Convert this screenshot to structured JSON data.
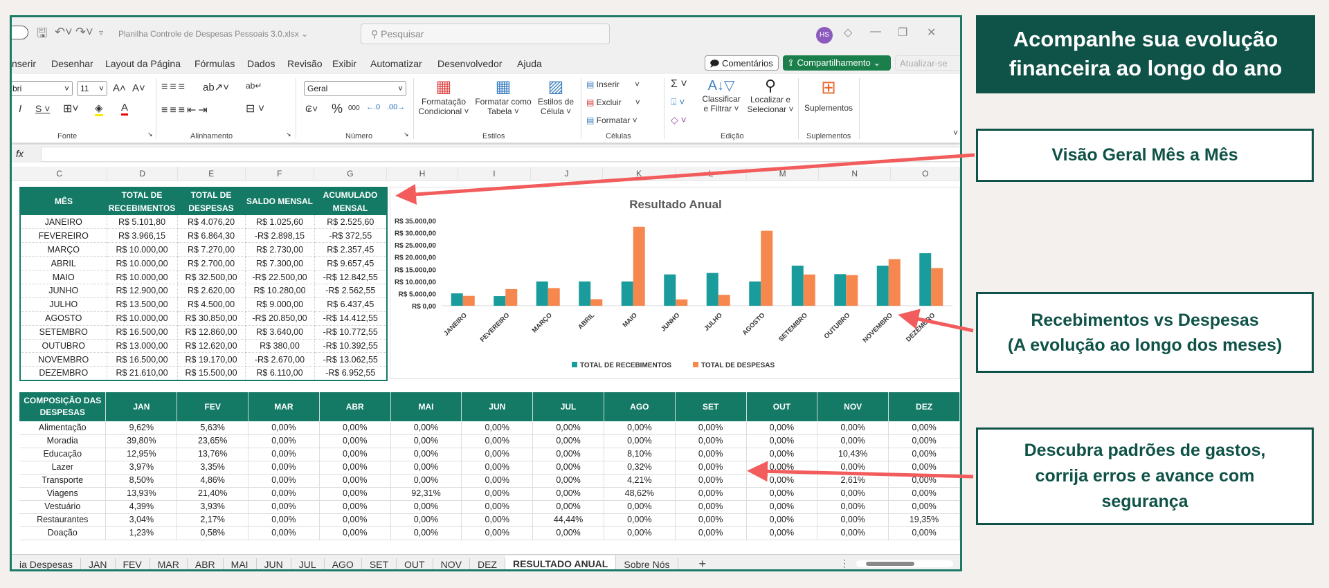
{
  "window": {
    "doc_title": "Planilha Controle de Despesas Pessoais 3.0.xlsx ⌄",
    "search_placeholder": "Pesquisar",
    "avatar": "HS"
  },
  "menu": [
    "nserir",
    "Desenhar",
    "Layout da Página",
    "Fórmulas",
    "Dados",
    "Revisão",
    "Exibir",
    "Automatizar",
    "Desenvolvedor",
    "Ajuda"
  ],
  "menu_buttons": {
    "comments": "Comentários",
    "share": "Compartilhamento ⌄",
    "update": "Atualizar-se"
  },
  "ribbon": {
    "font_name": "bri",
    "font_size": "11",
    "number_format": "Geral",
    "fonte": "Fonte",
    "alinhamento": "Alinhamento",
    "numero": "Número",
    "cond_format_1": "Formatação",
    "cond_format_2": "Condicional ˅",
    "format_table_1": "Formatar como",
    "format_table_2": "Tabela ˅",
    "cell_styles_1": "Estilos de",
    "cell_styles_2": "Célula ˅",
    "estilos": "Estilos",
    "inserir": "Inserir",
    "excluir": "Excluir",
    "formatar": "Formatar ˅",
    "celulas": "Células",
    "sort_1": "Classificar",
    "sort_2": "e Filtrar ˅",
    "find_1": "Localizar e",
    "find_2": "Selecionar ˅",
    "edicao": "Edição",
    "suplementos_btn": "Suplementos",
    "suplementos": "Suplementos"
  },
  "formula_bar": {
    "fx": "fx",
    "value": ""
  },
  "columns": [
    "C",
    "D",
    "E",
    "F",
    "G",
    "H",
    "I",
    "J",
    "K",
    "L",
    "M",
    "N",
    "O"
  ],
  "summary": {
    "headers": [
      "MÊS",
      "TOTAL DE RECEBIMENTOS",
      "TOTAL DE DESPESAS",
      "SALDO MENSAL",
      "ACUMULADO MENSAL"
    ],
    "rows": [
      [
        "JANEIRO",
        "R$ 5.101,80",
        "R$ 4.076,20",
        "R$ 1.025,60",
        "R$ 2.525,60"
      ],
      [
        "FEVEREIRO",
        "R$ 3.966,15",
        "R$ 6.864,30",
        "-R$ 2.898,15",
        "-R$ 372,55"
      ],
      [
        "MARÇO",
        "R$ 10.000,00",
        "R$ 7.270,00",
        "R$ 2.730,00",
        "R$ 2.357,45"
      ],
      [
        "ABRIL",
        "R$ 10.000,00",
        "R$ 2.700,00",
        "R$ 7.300,00",
        "R$ 9.657,45"
      ],
      [
        "MAIO",
        "R$ 10.000,00",
        "R$ 32.500,00",
        "-R$ 22.500,00",
        "-R$ 12.842,55"
      ],
      [
        "JUNHO",
        "R$ 12.900,00",
        "R$ 2.620,00",
        "R$ 10.280,00",
        "-R$ 2.562,55"
      ],
      [
        "JULHO",
        "R$ 13.500,00",
        "R$ 4.500,00",
        "R$ 9.000,00",
        "R$ 6.437,45"
      ],
      [
        "AGOSTO",
        "R$ 10.000,00",
        "R$ 30.850,00",
        "-R$ 20.850,00",
        "-R$ 14.412,55"
      ],
      [
        "SETEMBRO",
        "R$ 16.500,00",
        "R$ 12.860,00",
        "R$ 3.640,00",
        "-R$ 10.772,55"
      ],
      [
        "OUTUBRO",
        "R$ 13.000,00",
        "R$ 12.620,00",
        "R$ 380,00",
        "-R$ 10.392,55"
      ],
      [
        "NOVEMBRO",
        "R$ 16.500,00",
        "R$ 19.170,00",
        "-R$ 2.670,00",
        "-R$ 13.062,55"
      ],
      [
        "DEZEMBRO",
        "R$ 21.610,00",
        "R$ 15.500,00",
        "R$ 6.110,00",
        "-R$ 6.952,55"
      ]
    ]
  },
  "chart_data": {
    "type": "bar",
    "title": "Resultado Anual",
    "categories": [
      "JANEIRO",
      "FEVEREIRO",
      "MARÇO",
      "ABRIL",
      "MAIO",
      "JUNHO",
      "JULHO",
      "AGOSTO",
      "SETEMBRO",
      "OUTUBRO",
      "NOVEMBRO",
      "DEZEMBRO"
    ],
    "series": [
      {
        "name": "TOTAL DE RECEBIMENTOS",
        "color": "#1a9c9c",
        "values": [
          5101.8,
          3966.15,
          10000,
          10000,
          10000,
          12900,
          13500,
          10000,
          16500,
          13000,
          16500,
          21610
        ]
      },
      {
        "name": "TOTAL DE DESPESAS",
        "color": "#f6884f",
        "values": [
          4076.2,
          6864.3,
          7270,
          2700,
          32500,
          2620,
          4500,
          30850,
          12860,
          12620,
          19170,
          15500
        ]
      }
    ],
    "ylim": [
      0,
      35000
    ],
    "yticks": [
      "R$ 0,00",
      "R$ 5.000,00",
      "R$ 10.000,00",
      "R$ 15.000,00",
      "R$ 20.000,00",
      "R$ 25.000,00",
      "R$ 30.000,00",
      "R$ 35.000,00"
    ],
    "legend": "bottom",
    "grid": false
  },
  "composition": {
    "header": "COMPOSIÇÃO DAS DESPESAS",
    "months": [
      "JAN",
      "FEV",
      "MAR",
      "ABR",
      "MAI",
      "JUN",
      "JUL",
      "AGO",
      "SET",
      "OUT",
      "NOV",
      "DEZ"
    ],
    "rows": [
      {
        "label": "Alimentação",
        "values": [
          "9,62%",
          "5,63%",
          "0,00%",
          "0,00%",
          "0,00%",
          "0,00%",
          "0,00%",
          "0,00%",
          "0,00%",
          "0,00%",
          "0,00%",
          "0,00%"
        ]
      },
      {
        "label": "Moradia",
        "values": [
          "39,80%",
          "23,65%",
          "0,00%",
          "0,00%",
          "0,00%",
          "0,00%",
          "0,00%",
          "0,00%",
          "0,00%",
          "0,00%",
          "0,00%",
          "0,00%"
        ]
      },
      {
        "label": "Educação",
        "values": [
          "12,95%",
          "13,76%",
          "0,00%",
          "0,00%",
          "0,00%",
          "0,00%",
          "0,00%",
          "8,10%",
          "0,00%",
          "0,00%",
          "10,43%",
          "0,00%"
        ]
      },
      {
        "label": "Lazer",
        "values": [
          "3,97%",
          "3,35%",
          "0,00%",
          "0,00%",
          "0,00%",
          "0,00%",
          "0,00%",
          "0,32%",
          "0,00%",
          "0,00%",
          "0,00%",
          "0,00%"
        ]
      },
      {
        "label": "Transporte",
        "values": [
          "8,50%",
          "4,86%",
          "0,00%",
          "0,00%",
          "0,00%",
          "0,00%",
          "0,00%",
          "4,21%",
          "0,00%",
          "0,00%",
          "2,61%",
          "0,00%"
        ]
      },
      {
        "label": "Viagens",
        "values": [
          "13,93%",
          "21,40%",
          "0,00%",
          "0,00%",
          "92,31%",
          "0,00%",
          "0,00%",
          "48,62%",
          "0,00%",
          "0,00%",
          "0,00%",
          "0,00%"
        ]
      },
      {
        "label": "Vestuário",
        "values": [
          "4,39%",
          "3,93%",
          "0,00%",
          "0,00%",
          "0,00%",
          "0,00%",
          "0,00%",
          "0,00%",
          "0,00%",
          "0,00%",
          "0,00%",
          "0,00%"
        ]
      },
      {
        "label": "Restaurantes",
        "values": [
          "3,04%",
          "2,17%",
          "0,00%",
          "0,00%",
          "0,00%",
          "0,00%",
          "44,44%",
          "0,00%",
          "0,00%",
          "0,00%",
          "0,00%",
          "19,35%"
        ]
      },
      {
        "label": "Doação",
        "values": [
          "1,23%",
          "0,58%",
          "0,00%",
          "0,00%",
          "0,00%",
          "0,00%",
          "0,00%",
          "0,00%",
          "0,00%",
          "0,00%",
          "0,00%",
          "0,00%"
        ]
      }
    ]
  },
  "sheet_tabs": [
    "ia Despesas",
    "JAN",
    "FEV",
    "MAR",
    "ABR",
    "MAI",
    "JUN",
    "JUL",
    "AGO",
    "SET",
    "OUT",
    "NOV",
    "DEZ",
    "RESULTADO ANUAL",
    "Sobre Nós"
  ],
  "active_tab": "RESULTADO ANUAL",
  "add_sheet": "+",
  "callouts": {
    "hero": "Acompanhe sua evolução financeira ao longo do ano",
    "overview": "Visão Geral Mês a Mês",
    "income_vs_expense_1": "Recebimentos vs Despesas",
    "income_vs_expense_2": "(A evolução ao longo dos meses)",
    "patterns_1": "Descubra padrões de gastos,",
    "patterns_2": "corrija erros e avance com",
    "patterns_3": "segurança"
  },
  "colors": {
    "header_green": "#147a66",
    "callout_green": "#0f5247",
    "arrow_red": "#f25c5c"
  }
}
